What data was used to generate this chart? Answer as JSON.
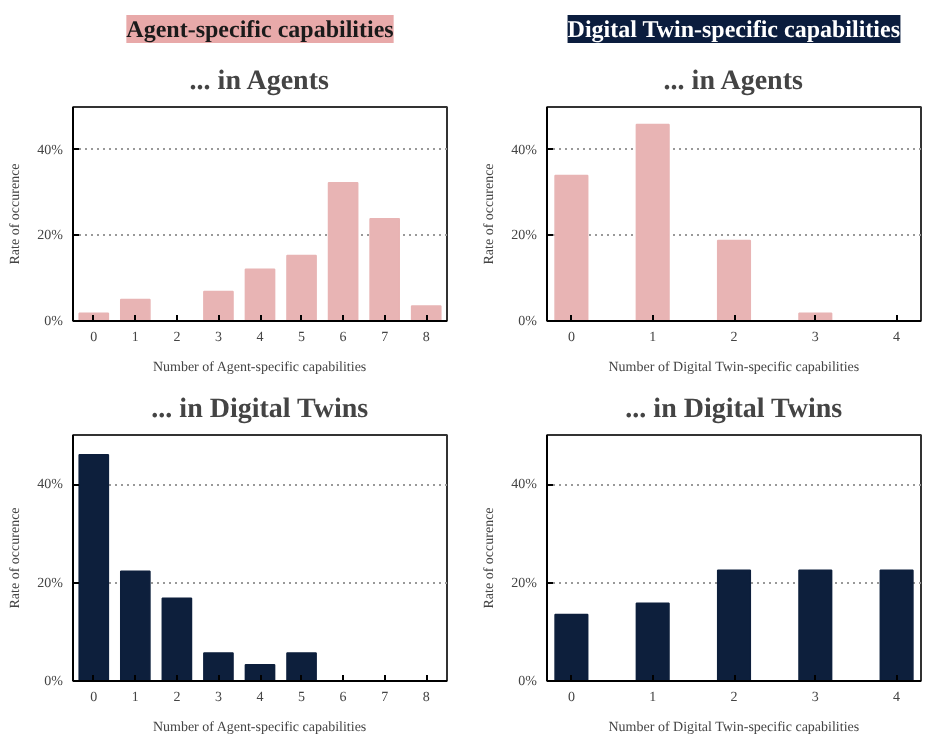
{
  "chart_data": [
    {
      "type": "bar",
      "title": "Agent-specific capabilities",
      "subtitle": "... in Agents",
      "xlabel": "Number of Agent-specific capabilities",
      "ylabel": "Rate of occurence",
      "x": [
        0,
        1,
        2,
        3,
        4,
        5,
        6,
        7,
        8
      ],
      "values": [
        1.8,
        5.0,
        0,
        6.9,
        12.1,
        15.3,
        32.3,
        23.9,
        3.5
      ],
      "color": "#e8b4b4",
      "xlim": [
        -0.5,
        8.5
      ],
      "xticks": [
        0,
        1,
        2,
        3,
        4,
        5,
        6,
        7,
        8
      ],
      "ylim": [
        0,
        50
      ],
      "yticks": [
        {
          "value": 0,
          "label": "0%"
        },
        {
          "value": 20,
          "label": "20%"
        },
        {
          "value": 40,
          "label": "40%"
        }
      ],
      "grid": "y"
    },
    {
      "type": "bar",
      "title": "Digital Twin-specific capabilities",
      "subtitle": "... in Agents",
      "xlabel": "Number of Digital Twin-specific capabilities",
      "ylabel": "Rate of occurence",
      "x": [
        0,
        1,
        2,
        3,
        4
      ],
      "values": [
        34,
        45.9,
        18.8,
        1.8,
        0
      ],
      "color": "#e8b4b4",
      "xlim": [
        -0.3,
        4.3
      ],
      "xticks": [
        0,
        1,
        2,
        3,
        4
      ],
      "ylim": [
        0,
        50
      ],
      "yticks": [
        {
          "value": 0,
          "label": "0%"
        },
        {
          "value": 20,
          "label": "20%"
        },
        {
          "value": 40,
          "label": "40%"
        }
      ],
      "grid": "y"
    },
    {
      "type": "bar",
      "title": "... in Digital Twins",
      "xlabel": "Number of Agent-specific capabilities",
      "ylabel": "Rate of occurence",
      "x": [
        0,
        1,
        2,
        3,
        4,
        5,
        6,
        7,
        8
      ],
      "values": [
        46,
        22.3,
        16.8,
        5.7,
        3.3,
        5.7,
        0,
        0,
        0
      ],
      "color": "#0d1f3c",
      "xlim": [
        -0.5,
        8.5
      ],
      "xticks": [
        0,
        1,
        2,
        3,
        4,
        5,
        6,
        7,
        8
      ],
      "ylim": [
        0,
        50
      ],
      "yticks": [
        {
          "value": 0,
          "label": "0%"
        },
        {
          "value": 20,
          "label": "20%"
        },
        {
          "value": 40,
          "label": "40%"
        }
      ],
      "grid": "y"
    },
    {
      "type": "bar",
      "title": "... in Digital Twins",
      "xlabel": "Number of Digital Twin-specific capabilities",
      "ylabel": "Rate of occurence",
      "x": [
        0,
        1,
        2,
        3,
        4
      ],
      "values": [
        13.5,
        15.8,
        22.5,
        22.5,
        22.5
      ],
      "color": "#0d1f3c",
      "xlim": [
        -0.3,
        4.3
      ],
      "xticks": [
        0,
        1,
        2,
        3,
        4
      ],
      "ylim": [
        0,
        50
      ],
      "yticks": [
        {
          "value": 0,
          "label": "0%"
        },
        {
          "value": 20,
          "label": "20%"
        },
        {
          "value": 40,
          "label": "40%"
        }
      ],
      "grid": "y"
    }
  ]
}
